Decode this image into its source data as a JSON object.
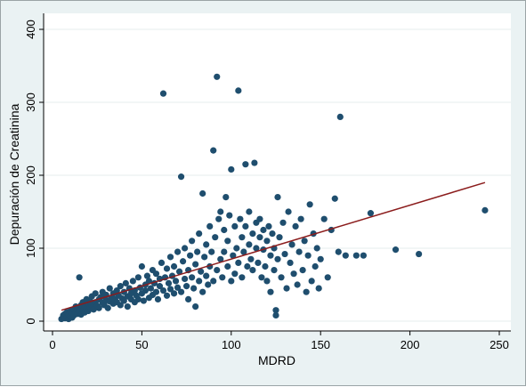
{
  "chart_data": {
    "type": "scatter",
    "xlabel": "MDRD",
    "ylabel": "Depuración de Creatinina",
    "xlim": [
      0,
      250
    ],
    "ylim": [
      0,
      400
    ],
    "xticks": [
      "0",
      "50",
      "100",
      "150",
      "200",
      "250"
    ],
    "yticks": [
      "0",
      "100",
      "200",
      "300",
      "400"
    ],
    "grid": true,
    "legend": "none",
    "colors": {
      "points": "#1f4e6e",
      "fit_line": "#8b1c1c",
      "plot_bg": "#ffffff",
      "outer_bg": "#eaf2f3",
      "grid": "#e6ecee"
    },
    "fit_line": {
      "x": [
        5,
        242
      ],
      "y": [
        15,
        190
      ]
    },
    "points": [
      [
        5,
        3
      ],
      [
        6,
        5
      ],
      [
        6,
        8
      ],
      [
        7,
        4
      ],
      [
        7,
        10
      ],
      [
        8,
        6
      ],
      [
        8,
        12
      ],
      [
        9,
        3
      ],
      [
        9,
        9
      ],
      [
        10,
        7
      ],
      [
        10,
        14
      ],
      [
        11,
        5
      ],
      [
        11,
        11
      ],
      [
        12,
        16
      ],
      [
        12,
        8
      ],
      [
        13,
        12
      ],
      [
        13,
        20
      ],
      [
        14,
        10
      ],
      [
        14,
        18
      ],
      [
        15,
        60
      ],
      [
        15,
        14
      ],
      [
        16,
        22
      ],
      [
        16,
        9
      ],
      [
        17,
        15
      ],
      [
        17,
        26
      ],
      [
        18,
        12
      ],
      [
        18,
        20
      ],
      [
        19,
        30
      ],
      [
        19,
        17
      ],
      [
        20,
        24
      ],
      [
        20,
        14
      ],
      [
        21,
        28
      ],
      [
        21,
        19
      ],
      [
        22,
        34
      ],
      [
        22,
        22
      ],
      [
        23,
        16
      ],
      [
        24,
        26
      ],
      [
        24,
        38
      ],
      [
        25,
        21
      ],
      [
        26,
        30
      ],
      [
        26,
        18
      ],
      [
        27,
        33
      ],
      [
        28,
        25
      ],
      [
        28,
        40
      ],
      [
        29,
        22
      ],
      [
        30,
        29
      ],
      [
        30,
        36
      ],
      [
        31,
        18
      ],
      [
        32,
        27
      ],
      [
        32,
        45
      ],
      [
        33,
        32
      ],
      [
        34,
        24
      ],
      [
        34,
        38
      ],
      [
        35,
        30
      ],
      [
        36,
        42
      ],
      [
        36,
        26
      ],
      [
        37,
        35
      ],
      [
        38,
        48
      ],
      [
        38,
        22
      ],
      [
        39,
        31
      ],
      [
        40,
        40
      ],
      [
        40,
        28
      ],
      [
        41,
        52
      ],
      [
        42,
        34
      ],
      [
        42,
        20
      ],
      [
        43,
        45
      ],
      [
        44,
        30
      ],
      [
        44,
        38
      ],
      [
        45,
        55
      ],
      [
        46,
        26
      ],
      [
        46,
        42
      ],
      [
        47,
        35
      ],
      [
        48,
        60
      ],
      [
        48,
        30
      ],
      [
        49,
        46
      ],
      [
        50,
        38
      ],
      [
        50,
        75
      ],
      [
        51,
        28
      ],
      [
        52,
        50
      ],
      [
        52,
        42
      ],
      [
        53,
        62
      ],
      [
        54,
        32
      ],
      [
        54,
        55
      ],
      [
        55,
        45
      ],
      [
        56,
        70
      ],
      [
        56,
        36
      ],
      [
        57,
        52
      ],
      [
        58,
        40
      ],
      [
        58,
        65
      ],
      [
        59,
        30
      ],
      [
        60,
        58
      ],
      [
        60,
        48
      ],
      [
        61,
        80
      ],
      [
        62,
        42
      ],
      [
        62,
        312
      ],
      [
        63,
        60
      ],
      [
        64,
        35
      ],
      [
        64,
        72
      ],
      [
        65,
        52
      ],
      [
        66,
        88
      ],
      [
        66,
        44
      ],
      [
        67,
        62
      ],
      [
        68,
        38
      ],
      [
        68,
        75
      ],
      [
        69,
        55
      ],
      [
        70,
        95
      ],
      [
        70,
        46
      ],
      [
        71,
        68
      ],
      [
        72,
        198
      ],
      [
        72,
        40
      ],
      [
        73,
        82
      ],
      [
        74,
        58
      ],
      [
        74,
        100
      ],
      [
        75,
        48
      ],
      [
        76,
        70
      ],
      [
        76,
        30
      ],
      [
        77,
        90
      ],
      [
        78,
        60
      ],
      [
        78,
        110
      ],
      [
        79,
        45
      ],
      [
        80,
        78
      ],
      [
        80,
        20
      ],
      [
        81,
        95
      ],
      [
        82,
        55
      ],
      [
        82,
        120
      ],
      [
        83,
        68
      ],
      [
        84,
        40
      ],
      [
        84,
        175
      ],
      [
        85,
        88
      ],
      [
        86,
        62
      ],
      [
        86,
        105
      ],
      [
        87,
        50
      ],
      [
        88,
        130
      ],
      [
        88,
        75
      ],
      [
        89,
        95
      ],
      [
        90,
        55
      ],
      [
        90,
        234
      ],
      [
        91,
        115
      ],
      [
        92,
        335
      ],
      [
        92,
        70
      ],
      [
        93,
        140
      ],
      [
        94,
        85
      ],
      [
        94,
        150
      ],
      [
        95,
        60
      ],
      [
        96,
        125
      ],
      [
        96,
        95
      ],
      [
        97,
        170
      ],
      [
        98,
        75
      ],
      [
        98,
        110
      ],
      [
        99,
        145
      ],
      [
        100,
        208
      ],
      [
        100,
        55
      ],
      [
        101,
        90
      ],
      [
        102,
        130
      ],
      [
        102,
        65
      ],
      [
        103,
        100
      ],
      [
        104,
        316
      ],
      [
        104,
        80
      ],
      [
        105,
        140
      ],
      [
        106,
        115
      ],
      [
        106,
        60
      ],
      [
        107,
        95
      ],
      [
        108,
        215
      ],
      [
        108,
        130
      ],
      [
        109,
        75
      ],
      [
        110,
        105
      ],
      [
        110,
        150
      ],
      [
        111,
        85
      ],
      [
        112,
        120
      ],
      [
        112,
        70
      ],
      [
        113,
        217
      ],
      [
        114,
        100
      ],
      [
        114,
        135
      ],
      [
        115,
        80
      ],
      [
        116,
        115
      ],
      [
        116,
        140
      ],
      [
        117,
        60
      ],
      [
        118,
        98
      ],
      [
        118,
        125
      ],
      [
        119,
        75
      ],
      [
        120,
        110
      ],
      [
        120,
        55
      ],
      [
        121,
        130
      ],
      [
        122,
        90
      ],
      [
        122,
        40
      ],
      [
        123,
        120
      ],
      [
        124,
        70
      ],
      [
        124,
        100
      ],
      [
        125,
        15
      ],
      [
        125,
        8
      ],
      [
        126,
        170
      ],
      [
        126,
        85
      ],
      [
        127,
        115
      ],
      [
        128,
        60
      ],
      [
        129,
        135
      ],
      [
        130,
        92
      ],
      [
        131,
        45
      ],
      [
        132,
        150
      ],
      [
        133,
        80
      ],
      [
        134,
        105
      ],
      [
        135,
        65
      ],
      [
        136,
        130
      ],
      [
        137,
        50
      ],
      [
        138,
        95
      ],
      [
        139,
        140
      ],
      [
        140,
        70
      ],
      [
        141,
        110
      ],
      [
        142,
        40
      ],
      [
        143,
        90
      ],
      [
        144,
        160
      ],
      [
        145,
        55
      ],
      [
        146,
        120
      ],
      [
        147,
        75
      ],
      [
        148,
        100
      ],
      [
        149,
        45
      ],
      [
        150,
        85
      ],
      [
        152,
        140
      ],
      [
        154,
        60
      ],
      [
        156,
        125
      ],
      [
        158,
        168
      ],
      [
        160,
        95
      ],
      [
        161,
        280
      ],
      [
        164,
        90
      ],
      [
        170,
        90
      ],
      [
        174,
        90
      ],
      [
        178,
        148
      ],
      [
        192,
        98
      ],
      [
        205,
        92
      ],
      [
        242,
        152
      ]
    ]
  }
}
